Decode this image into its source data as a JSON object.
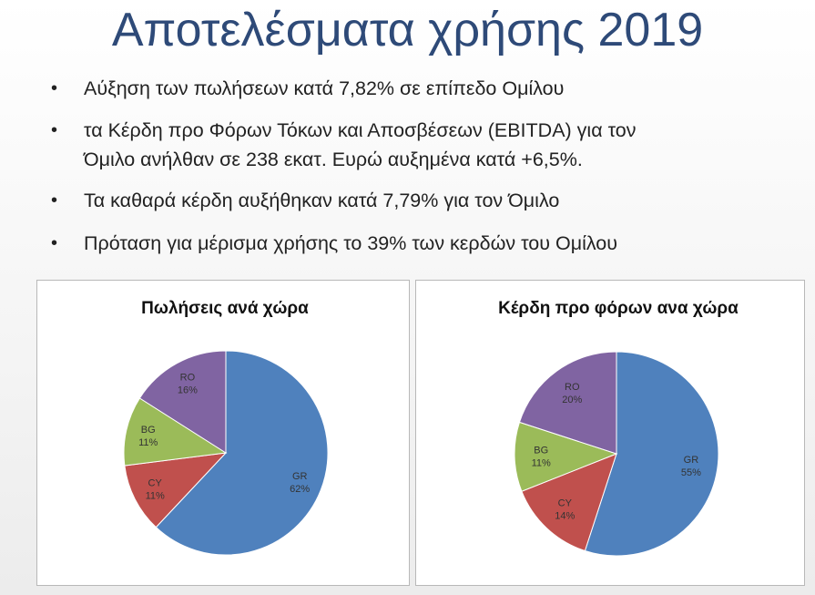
{
  "page": {
    "title": "Αποτελέσματα χρήσης 2019",
    "bullet_glyph": "•",
    "bullets": [
      "Αύξηση των πωλήσεων κατά 7,82% σε επίπεδο Ομίλου",
      "τα Κέρδη προ Φόρων Τόκων και Αποσβέσεων (EBITDA) για τον",
      "Όμιλο ανήλθαν σε 238 εκατ. Ευρώ αυξημένα κατά +6,5%.",
      "Τα καθαρά κέρδη αυξήθηκαν κατά 7,79% για τον Όμιλο",
      "Πρόταση για μέρισμα χρήσης το 39% των κερδών του Ομίλου"
    ]
  },
  "chart_data": [
    {
      "type": "pie",
      "title": "Πωλήσεις ανά χώρα",
      "categories": [
        "GR",
        "CY",
        "BG",
        "RO"
      ],
      "values": [
        62,
        11,
        11,
        16
      ],
      "value_labels": [
        "62%",
        "11%",
        "11%",
        "16%"
      ],
      "colors": [
        "#4f81bd",
        "#c0504d",
        "#9bbb59",
        "#8064a2"
      ],
      "legend": false
    },
    {
      "type": "pie",
      "title": "Κέρδη προ φόρων ανα χώρα",
      "categories": [
        "GR",
        "CY",
        "BG",
        "RO"
      ],
      "values": [
        55,
        14,
        11,
        20
      ],
      "value_labels": [
        "55%",
        "14%",
        "11%",
        "20%"
      ],
      "colors": [
        "#4f81bd",
        "#c0504d",
        "#9bbb59",
        "#8064a2"
      ],
      "legend": false
    }
  ]
}
